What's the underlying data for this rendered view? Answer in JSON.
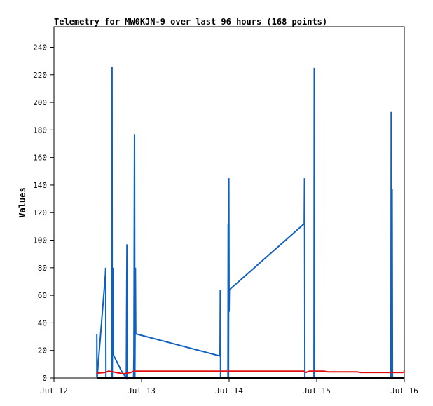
{
  "chart_data": {
    "type": "line",
    "title": "Telemetry for MW0KJN-9 over last 96 hours (168 points)",
    "xlabel": "",
    "ylabel": "Values",
    "x_ticks": [
      "Jul 12",
      "Jul 13",
      "Jul 14",
      "Jul 15",
      "Jul 16"
    ],
    "y_ticks": [
      0,
      20,
      40,
      60,
      80,
      100,
      120,
      140,
      160,
      180,
      200,
      220,
      240
    ],
    "xlim": [
      "2024-07-12 00:00",
      "2024-07-16 00:00"
    ],
    "ylim": [
      0,
      255
    ],
    "grid": false,
    "series": [
      {
        "color": "#1060c0",
        "points": [
          [
            "2024-07-12 11:45",
            0
          ],
          [
            "2024-07-12 11:45",
            32
          ],
          [
            "2024-07-12 11:50",
            0
          ],
          [
            "2024-07-12 14:05",
            75
          ],
          [
            "2024-07-12 14:10",
            80
          ],
          [
            "2024-07-12 14:15",
            0
          ],
          [
            "2024-07-12 15:50",
            0
          ],
          [
            "2024-07-12 15:52",
            225
          ],
          [
            "2024-07-12 15:55",
            225
          ],
          [
            "2024-07-12 15:58",
            0
          ],
          [
            "2024-07-12 16:10",
            80
          ],
          [
            "2024-07-12 16:15",
            17
          ],
          [
            "2024-07-12 18:30",
            5
          ],
          [
            "2024-07-12 19:50",
            0
          ],
          [
            "2024-07-12 19:55",
            49
          ],
          [
            "2024-07-12 20:00",
            97
          ],
          [
            "2024-07-12 20:05",
            0
          ],
          [
            "2024-07-12 21:50",
            0
          ],
          [
            "2024-07-12 21:55",
            17
          ],
          [
            "2024-07-12 22:05",
            177
          ],
          [
            "2024-07-12 22:10",
            0
          ],
          [
            "2024-07-12 22:20",
            80
          ],
          [
            "2024-07-12 22:25",
            32
          ],
          [
            "2024-07-13 21:30",
            16
          ],
          [
            "2024-07-13 21:35",
            64
          ],
          [
            "2024-07-13 21:40",
            0
          ],
          [
            "2024-07-13 23:40",
            0
          ],
          [
            "2024-07-13 23:42",
            24
          ],
          [
            "2024-07-13 23:45",
            112
          ],
          [
            "2024-07-13 23:50",
            0
          ],
          [
            "2024-07-13 23:55",
            145
          ],
          [
            "2024-07-14 00:00",
            48
          ],
          [
            "2024-07-14 00:05",
            64
          ],
          [
            "2024-07-14 20:35",
            112
          ],
          [
            "2024-07-14 20:40",
            145
          ],
          [
            "2024-07-14 20:45",
            0
          ],
          [
            "2024-07-14 23:15",
            0
          ],
          [
            "2024-07-14 23:20",
            225
          ],
          [
            "2024-07-14 23:25",
            0
          ],
          [
            "2024-07-15 20:20",
            0
          ],
          [
            "2024-07-15 20:25",
            193
          ],
          [
            "2024-07-15 20:30",
            0
          ],
          [
            "2024-07-15 20:40",
            137
          ],
          [
            "2024-07-15 20:45",
            0
          ]
        ]
      },
      {
        "color": "#e01010",
        "points": [
          [
            "2024-07-12 11:45",
            3.5
          ],
          [
            "2024-07-12 14:00",
            4
          ],
          [
            "2024-07-12 15:00",
            5
          ],
          [
            "2024-07-12 17:00",
            4
          ],
          [
            "2024-07-12 19:00",
            3
          ],
          [
            "2024-07-12 21:00",
            4
          ],
          [
            "2024-07-12 22:00",
            5
          ],
          [
            "2024-07-13 21:30",
            5
          ],
          [
            "2024-07-13 21:40",
            4.5
          ],
          [
            "2024-07-13 22:00",
            5
          ],
          [
            "2024-07-14 20:30",
            5
          ],
          [
            "2024-07-14 21:00",
            4
          ],
          [
            "2024-07-14 22:00",
            5
          ],
          [
            "2024-07-15 02:00",
            5
          ],
          [
            "2024-07-15 03:00",
            4.5
          ],
          [
            "2024-07-15 11:00",
            4.5
          ],
          [
            "2024-07-15 12:00",
            4
          ],
          [
            "2024-07-15 23:55",
            4
          ],
          [
            "2024-07-16 00:00",
            6
          ]
        ]
      },
      {
        "color": "#000000",
        "points": [
          [
            "2024-07-12 11:45",
            0
          ],
          [
            "2024-07-15 23:55",
            0
          ]
        ]
      }
    ]
  }
}
